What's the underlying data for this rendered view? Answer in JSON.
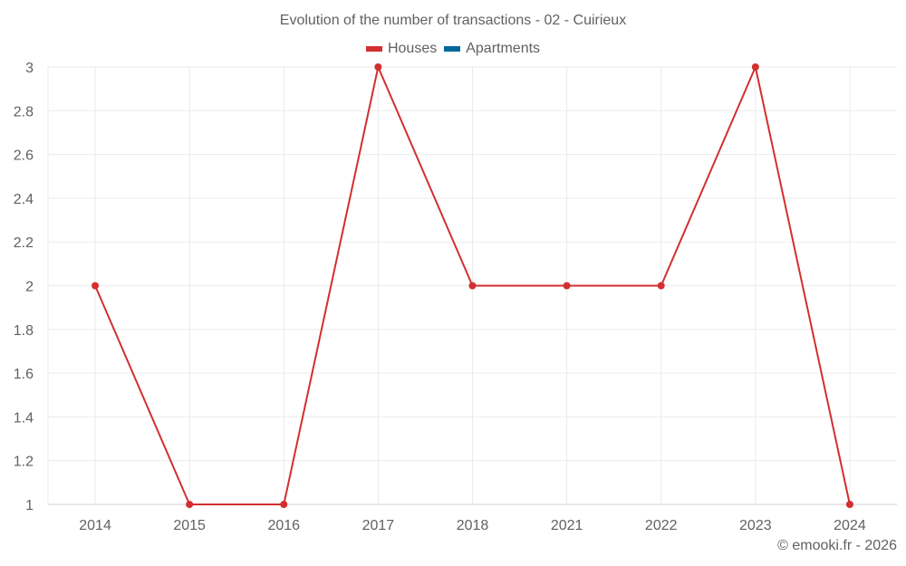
{
  "chart_data": {
    "type": "line",
    "title": "Evolution of the number of transactions - 02 - Cuirieux",
    "categories": [
      "2014",
      "2015",
      "2016",
      "2017",
      "2018",
      "2021",
      "2022",
      "2023",
      "2024"
    ],
    "series": [
      {
        "name": "Houses",
        "color": "#d32f2f",
        "values": [
          2,
          1,
          1,
          3,
          2,
          2,
          2,
          3,
          1
        ]
      },
      {
        "name": "Apartments",
        "color": "#01689b",
        "values": []
      }
    ],
    "xlabel": "",
    "ylabel": "",
    "ylim": [
      1,
      3
    ],
    "yticks": [
      "1",
      "1.2",
      "1.4",
      "1.6",
      "1.8",
      "2",
      "2.2",
      "2.4",
      "2.6",
      "2.8",
      "3"
    ],
    "grid": true,
    "legend_position": "top"
  },
  "header": {
    "title": "Evolution of the number of transactions - 02 - Cuirieux"
  },
  "legend": {
    "items": [
      {
        "label": "Houses",
        "color": "#d32f2f"
      },
      {
        "label": "Apartments",
        "color": "#01689b"
      }
    ]
  },
  "footer": {
    "credit": "© emooki.fr - 2026"
  }
}
